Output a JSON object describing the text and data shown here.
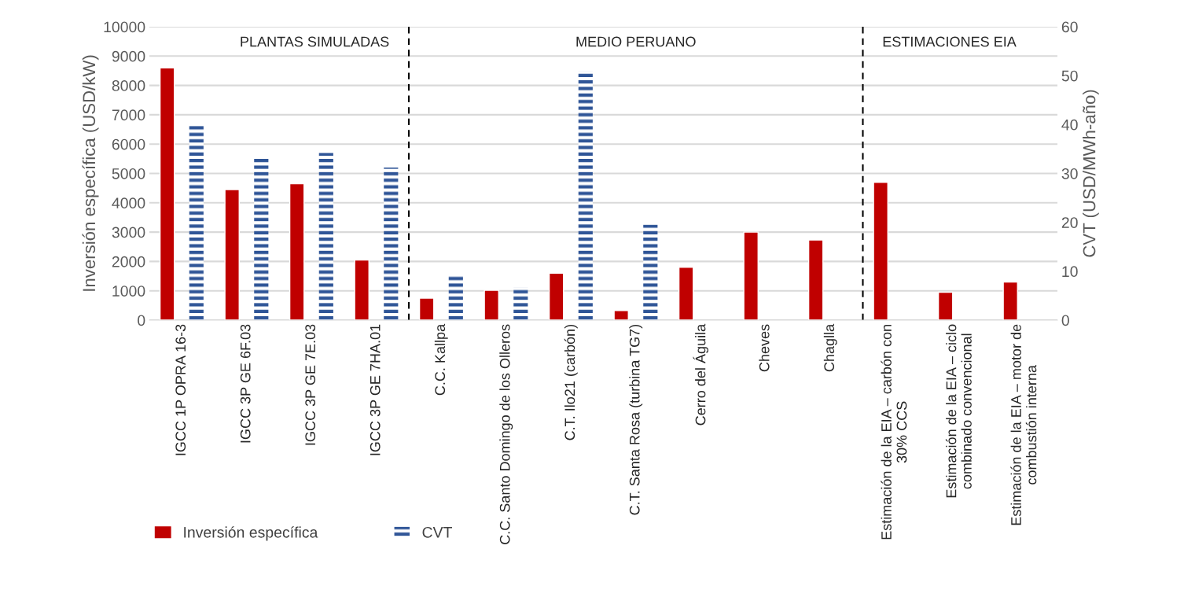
{
  "chart_data": {
    "type": "bar",
    "categories": [
      "IGCC 1P OPRA 16-3",
      "IGCC 3P GE 6F.03",
      "IGCC 3P GE 7E.03",
      "IGCC 3P GE 7HA.01",
      "C.C. Kallpa",
      "C.C. Santo Domingo de los Olleros",
      "C.T. Ilo21 (carbón)",
      "C.T. Santa Rosa (turbina TG7)",
      "Cerro del Águila",
      "Cheves",
      "Chaglla",
      "Estimación de la EIA – carbón con\n30% CCS",
      "Estimación de la EIA – ciclo\ncombinado convencional",
      "Estimación de la EIA – motor de\ncombustión interna"
    ],
    "series": [
      {
        "name": "Inversión específica",
        "color": "#c00000",
        "values": [
          8600,
          4450,
          4650,
          2050,
          750,
          1020,
          1600,
          330,
          1800,
          3000,
          2730,
          4700,
          950,
          1300
        ]
      },
      {
        "name": "CVT",
        "color": "#2f5597",
        "axis": "y2",
        "values": [
          40.2,
          33,
          34.2,
          31.2,
          9.3,
          6.7,
          51,
          19.5,
          null,
          null,
          null,
          null,
          null,
          null
        ]
      }
    ],
    "ylabel": "Inversión específica (USD/kW)",
    "y2label": "CVT (USD/MWh-año)",
    "ylim": [
      0,
      10000
    ],
    "yticks": [
      0,
      1000,
      2000,
      3000,
      4000,
      5000,
      6000,
      7000,
      8000,
      9000,
      10000
    ],
    "y2lim": [
      0,
      60
    ],
    "y2ticks": [
      0,
      10,
      20,
      30,
      40,
      50,
      60
    ],
    "annotations": [
      "PLANTAS SIMULADAS",
      "MEDIO PERUANO",
      "ESTIMACIONES EIA"
    ],
    "grid": "y",
    "legend": "bottom left"
  }
}
